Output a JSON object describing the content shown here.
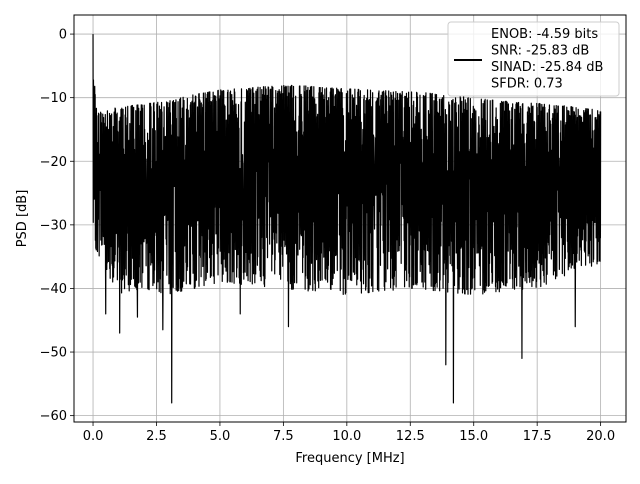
{
  "chart_data": {
    "type": "line",
    "xlabel": "Frequency [MHz]",
    "ylabel": "PSD [dB]",
    "xlim": [
      -0.75,
      21.0
    ],
    "ylim": [
      -61,
      3
    ],
    "x_ticks": [
      0.0,
      2.5,
      5.0,
      7.5,
      10.0,
      12.5,
      15.0,
      17.5,
      20.0
    ],
    "x_tick_labels": [
      "0.0",
      "2.5",
      "5.0",
      "7.5",
      "10.0",
      "12.5",
      "15.0",
      "17.5",
      "20.0"
    ],
    "y_ticks": [
      0,
      -10,
      -20,
      -30,
      -40,
      -50,
      -60
    ],
    "y_tick_labels": [
      "0",
      "−10",
      "−20",
      "−30",
      "−40",
      "−50",
      "−60"
    ],
    "grid": true,
    "legend": {
      "position": "top-right",
      "lines": [
        "ENOB: -4.59 bits",
        "SNR: -25.83 dB",
        "SINAD: -25.84 dB",
        "SFDR: 0.73"
      ]
    },
    "series": [
      {
        "color": "#000000",
        "frequency_range_mhz": [
          0.0,
          20.0
        ],
        "peak_envelope_db": [
          [
            0.0,
            0.0
          ],
          [
            0.05,
            -7.3
          ],
          [
            0.15,
            -12.5
          ],
          [
            0.5,
            -12.0
          ],
          [
            1.0,
            -11.5
          ],
          [
            2.0,
            -11.0
          ],
          [
            3.0,
            -10.5
          ],
          [
            4.0,
            -9.5
          ],
          [
            5.0,
            -8.8
          ],
          [
            6.0,
            -8.5
          ],
          [
            7.0,
            -8.2
          ],
          [
            8.0,
            -8.0
          ],
          [
            9.0,
            -8.4
          ],
          [
            10.0,
            -8.6
          ],
          [
            11.0,
            -8.8
          ],
          [
            12.0,
            -9.0
          ],
          [
            13.0,
            -9.2
          ],
          [
            14.0,
            -9.6
          ],
          [
            15.0,
            -10.0
          ],
          [
            16.0,
            -10.5
          ],
          [
            17.0,
            -10.8
          ],
          [
            18.0,
            -11.0
          ],
          [
            19.0,
            -11.5
          ],
          [
            20.0,
            -12.0
          ]
        ],
        "floor_envelope_db": [
          [
            0.0,
            -33.0
          ],
          [
            1.0,
            -41.0
          ],
          [
            2.0,
            -40.0
          ],
          [
            3.0,
            -41.0
          ],
          [
            5.0,
            -39.0
          ],
          [
            7.5,
            -40.0
          ],
          [
            10.0,
            -41.0
          ],
          [
            12.5,
            -40.0
          ],
          [
            15.0,
            -41.0
          ],
          [
            17.5,
            -40.0
          ],
          [
            20.0,
            -36.0
          ]
        ],
        "notable_minima": [
          [
            0.5,
            -44.0
          ],
          [
            1.05,
            -47.0
          ],
          [
            1.75,
            -44.5
          ],
          [
            2.75,
            -46.5
          ],
          [
            3.1,
            -58.0
          ],
          [
            5.8,
            -44.0
          ],
          [
            7.7,
            -46.0
          ],
          [
            13.9,
            -52.0
          ],
          [
            14.2,
            -58.0
          ],
          [
            16.9,
            -51.0
          ],
          [
            19.0,
            -46.0
          ]
        ]
      }
    ]
  }
}
